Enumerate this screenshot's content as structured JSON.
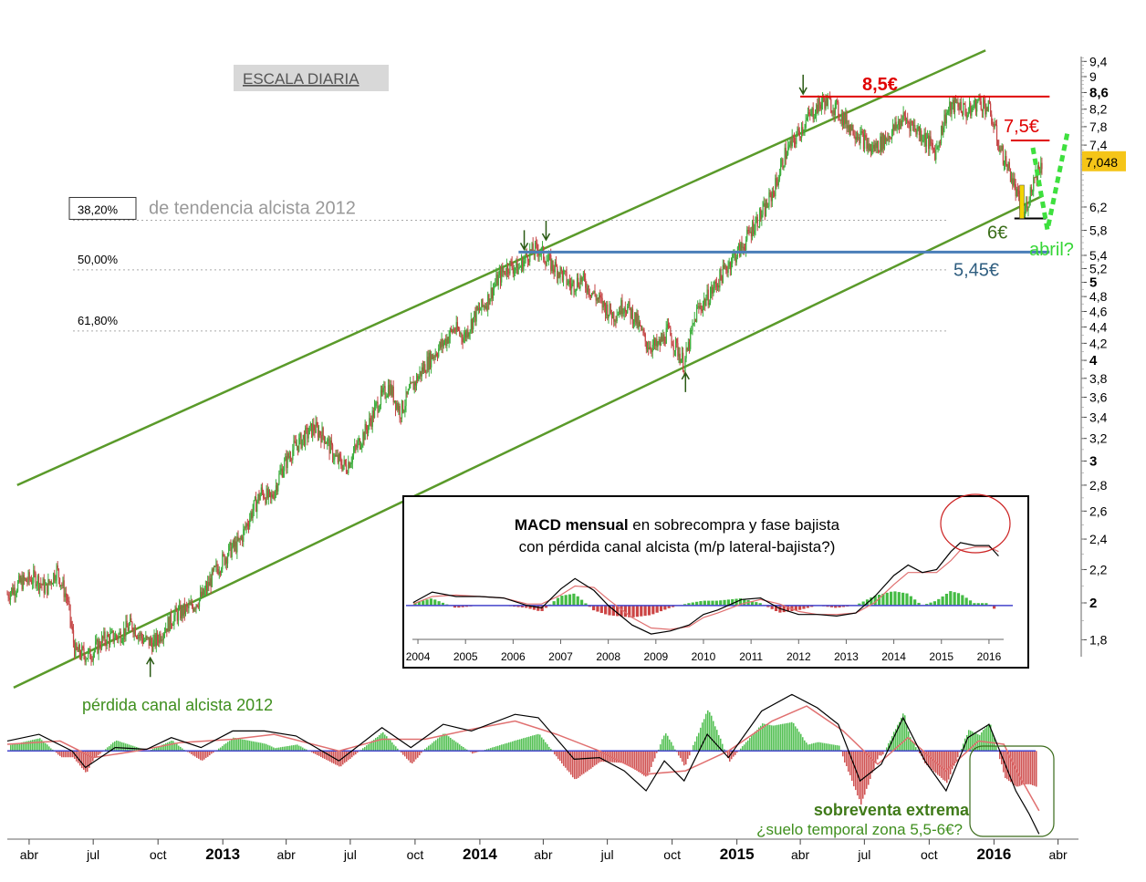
{
  "chart_data": {
    "type": "line",
    "scale_label": "ESCALA DIARIA",
    "current_price": "7,048",
    "y_scale": "log",
    "ylim": [
      1.65,
      9.6
    ],
    "y_ticks": [
      {
        "v": 9.4,
        "label": "9,4",
        "bold": false
      },
      {
        "v": 9.0,
        "label": "9",
        "bold": false
      },
      {
        "v": 8.6,
        "label": "8,6",
        "bold": true
      },
      {
        "v": 8.2,
        "label": "8,2",
        "bold": false
      },
      {
        "v": 7.8,
        "label": "7,8",
        "bold": false
      },
      {
        "v": 7.4,
        "label": "7,4",
        "bold": false
      },
      {
        "v": 6.2,
        "label": "6,2",
        "bold": false
      },
      {
        "v": 5.8,
        "label": "5,8",
        "bold": false
      },
      {
        "v": 5.4,
        "label": "5,4",
        "bold": false
      },
      {
        "v": 5.2,
        "label": "5,2",
        "bold": false
      },
      {
        "v": 5.0,
        "label": "5",
        "bold": true
      },
      {
        "v": 4.8,
        "label": "4,8",
        "bold": false
      },
      {
        "v": 4.6,
        "label": "4,6",
        "bold": false
      },
      {
        "v": 4.4,
        "label": "4,4",
        "bold": false
      },
      {
        "v": 4.2,
        "label": "4,2",
        "bold": false
      },
      {
        "v": 4.0,
        "label": "4",
        "bold": true
      },
      {
        "v": 3.8,
        "label": "3,8",
        "bold": false
      },
      {
        "v": 3.6,
        "label": "3,6",
        "bold": false
      },
      {
        "v": 3.4,
        "label": "3,4",
        "bold": false
      },
      {
        "v": 3.2,
        "label": "3,2",
        "bold": false
      },
      {
        "v": 3.0,
        "label": "3",
        "bold": true
      },
      {
        "v": 2.8,
        "label": "2,8",
        "bold": false
      },
      {
        "v": 2.6,
        "label": "2,6",
        "bold": false
      },
      {
        "v": 2.4,
        "label": "2,4",
        "bold": false
      },
      {
        "v": 2.2,
        "label": "2,2",
        "bold": false
      },
      {
        "v": 2.0,
        "label": "2",
        "bold": true
      },
      {
        "v": 1.8,
        "label": "1,8",
        "bold": false
      }
    ],
    "x_range": [
      "2012-03-01",
      "2016-04-30"
    ],
    "x_ticks": [
      {
        "date": "2012-04-01",
        "label": "abr",
        "bold": false
      },
      {
        "date": "2012-07-01",
        "label": "jul",
        "bold": false
      },
      {
        "date": "2012-10-01",
        "label": "oct",
        "bold": false
      },
      {
        "date": "2013-01-01",
        "label": "2013",
        "bold": true
      },
      {
        "date": "2013-04-01",
        "label": "abr",
        "bold": false
      },
      {
        "date": "2013-07-01",
        "label": "jul",
        "bold": false
      },
      {
        "date": "2013-10-01",
        "label": "oct",
        "bold": false
      },
      {
        "date": "2014-01-01",
        "label": "2014",
        "bold": true
      },
      {
        "date": "2014-04-01",
        "label": "abr",
        "bold": false
      },
      {
        "date": "2014-07-01",
        "label": "jul",
        "bold": false
      },
      {
        "date": "2014-10-01",
        "label": "oct",
        "bold": false
      },
      {
        "date": "2015-01-01",
        "label": "2015",
        "bold": true
      },
      {
        "date": "2015-04-01",
        "label": "abr",
        "bold": false
      },
      {
        "date": "2015-07-01",
        "label": "jul",
        "bold": false
      },
      {
        "date": "2015-10-01",
        "label": "oct",
        "bold": false
      },
      {
        "date": "2016-01-01",
        "label": "2016",
        "bold": true
      },
      {
        "date": "2016-04-01",
        "label": "abr",
        "bold": false
      }
    ],
    "price_path": [
      [
        "2012-03-01",
        2.05
      ],
      [
        "2012-03-20",
        2.12
      ],
      [
        "2012-04-10",
        2.15
      ],
      [
        "2012-04-25",
        2.08
      ],
      [
        "2012-05-10",
        2.2
      ],
      [
        "2012-05-25",
        2.02
      ],
      [
        "2012-06-05",
        1.74
      ],
      [
        "2012-06-25",
        1.72
      ],
      [
        "2012-07-15",
        1.8
      ],
      [
        "2012-08-05",
        1.82
      ],
      [
        "2012-08-25",
        1.88
      ],
      [
        "2012-09-10",
        1.8
      ],
      [
        "2012-09-25",
        1.78
      ],
      [
        "2012-10-10",
        1.86
      ],
      [
        "2012-10-25",
        1.93
      ],
      [
        "2012-11-15",
        1.97
      ],
      [
        "2012-12-05",
        2.05
      ],
      [
        "2012-12-20",
        2.18
      ],
      [
        "2013-01-10",
        2.32
      ],
      [
        "2013-01-25",
        2.38
      ],
      [
        "2013-02-10",
        2.58
      ],
      [
        "2013-02-25",
        2.75
      ],
      [
        "2013-03-10",
        2.68
      ],
      [
        "2013-03-25",
        2.92
      ],
      [
        "2013-04-10",
        3.1
      ],
      [
        "2013-04-25",
        3.2
      ],
      [
        "2013-05-10",
        3.3
      ],
      [
        "2013-05-25",
        3.22
      ],
      [
        "2013-06-10",
        3.02
      ],
      [
        "2013-06-25",
        2.95
      ],
      [
        "2013-07-10",
        3.12
      ],
      [
        "2013-07-25",
        3.3
      ],
      [
        "2013-08-10",
        3.55
      ],
      [
        "2013-08-25",
        3.72
      ],
      [
        "2013-09-10",
        3.45
      ],
      [
        "2013-09-25",
        3.68
      ],
      [
        "2013-10-10",
        3.88
      ],
      [
        "2013-10-25",
        4.05
      ],
      [
        "2013-11-10",
        4.2
      ],
      [
        "2013-11-25",
        4.38
      ],
      [
        "2013-12-10",
        4.28
      ],
      [
        "2013-12-25",
        4.55
      ],
      [
        "2014-01-10",
        4.72
      ],
      [
        "2014-01-25",
        5.02
      ],
      [
        "2014-02-10",
        5.25
      ],
      [
        "2014-02-25",
        5.2
      ],
      [
        "2014-03-10",
        5.42
      ],
      [
        "2014-03-25",
        5.5
      ],
      [
        "2014-04-10",
        5.28
      ],
      [
        "2014-04-25",
        5.15
      ],
      [
        "2014-05-10",
        4.95
      ],
      [
        "2014-05-25",
        5.05
      ],
      [
        "2014-06-10",
        4.85
      ],
      [
        "2014-06-25",
        4.68
      ],
      [
        "2014-07-10",
        4.55
      ],
      [
        "2014-07-25",
        4.7
      ],
      [
        "2014-08-10",
        4.5
      ],
      [
        "2014-08-25",
        4.2
      ],
      [
        "2014-09-10",
        4.15
      ],
      [
        "2014-09-25",
        4.35
      ],
      [
        "2014-10-10",
        4.1
      ],
      [
        "2014-10-18",
        3.95
      ],
      [
        "2014-11-05",
        4.6
      ],
      [
        "2014-11-25",
        4.85
      ],
      [
        "2014-12-10",
        5.1
      ],
      [
        "2014-12-25",
        5.35
      ],
      [
        "2015-01-10",
        5.55
      ],
      [
        "2015-01-25",
        5.9
      ],
      [
        "2015-02-10",
        6.15
      ],
      [
        "2015-02-25",
        6.6
      ],
      [
        "2015-03-10",
        7.2
      ],
      [
        "2015-03-25",
        7.55
      ],
      [
        "2015-04-10",
        7.95
      ],
      [
        "2015-04-25",
        8.25
      ],
      [
        "2015-05-05",
        8.4
      ],
      [
        "2015-05-20",
        8.25
      ],
      [
        "2015-06-05",
        7.9
      ],
      [
        "2015-06-25",
        7.6
      ],
      [
        "2015-07-10",
        7.3
      ],
      [
        "2015-07-25",
        7.45
      ],
      [
        "2015-08-10",
        7.7
      ],
      [
        "2015-08-25",
        8.0
      ],
      [
        "2015-09-10",
        7.8
      ],
      [
        "2015-09-25",
        7.55
      ],
      [
        "2015-10-10",
        7.25
      ],
      [
        "2015-10-25",
        8.1
      ],
      [
        "2015-11-10",
        8.35
      ],
      [
        "2015-11-25",
        8.1
      ],
      [
        "2015-12-10",
        8.4
      ],
      [
        "2015-12-25",
        8.2
      ],
      [
        "2016-01-10",
        7.3
      ],
      [
        "2016-01-25",
        6.8
      ],
      [
        "2016-02-05",
        6.3
      ],
      [
        "2016-02-11",
        6.0
      ],
      [
        "2016-02-20",
        6.4
      ],
      [
        "2016-02-28",
        6.8
      ],
      [
        "2016-03-10",
        7.05
      ]
    ],
    "channel_upper": [
      [
        "2012-03-15",
        2.8
      ],
      [
        "2015-12-20",
        9.7
      ]
    ],
    "channel_lower": [
      [
        "2012-03-10",
        1.57
      ],
      [
        "2016-03-10",
        6.4
      ]
    ],
    "horizontal_levels": [
      {
        "value": 8.5,
        "label": "8,5€",
        "color": "#e00000",
        "from": "2015-04-01",
        "to": "2016-03-20"
      },
      {
        "value": 7.5,
        "label": "7,5€",
        "color": "#e00000",
        "from": "2016-01-25",
        "to": "2016-03-20"
      },
      {
        "value": 6.0,
        "label": "6€",
        "color": "#000000",
        "from": "2016-01-30",
        "to": "2016-03-15"
      },
      {
        "value": 5.45,
        "label": "5,45€",
        "color": "#4a7eb8",
        "from": "2014-02-25",
        "to": "2016-03-20"
      }
    ],
    "fib_levels": [
      {
        "label": "38,20%",
        "value": 5.97,
        "note": "de tendencia alcista 2012"
      },
      {
        "label": "50,00%",
        "value": 5.18
      },
      {
        "label": "61,80%",
        "value": 4.35
      }
    ],
    "arrows_down": [
      [
        "2014-03-05",
        5.45
      ],
      [
        "2014-04-05",
        5.6
      ],
      [
        "2015-04-05",
        8.5
      ]
    ],
    "arrows_up": [
      [
        "2012-09-20",
        1.75
      ],
      [
        "2014-10-20",
        3.95
      ]
    ],
    "annotations": {
      "channel_lost": "pérdida canal alcista 2012",
      "projection": "abril?",
      "oversold_title": "sobreventa extrema",
      "oversold_sub": "¿suelo temporal zona 5,5-6€?"
    },
    "macd_inset": {
      "title_bold": "MACD mensual",
      "title_rest": " en sobrecompra y fase bajista",
      "subtitle": "con pérdida canal alcista (m/p lateral-bajista?)",
      "years": [
        "2004",
        "2005",
        "2006",
        "2007",
        "2008",
        "2009",
        "2010",
        "2011",
        "2012",
        "2013",
        "2014",
        "2015",
        "2016"
      ],
      "macd_line": [
        [
          2003.9,
          0.1
        ],
        [
          2004.3,
          0.45
        ],
        [
          2004.8,
          0.3
        ],
        [
          2005.3,
          0.3
        ],
        [
          2005.8,
          0.25
        ],
        [
          2006.3,
          0.0
        ],
        [
          2006.6,
          -0.08
        ],
        [
          2007.0,
          0.55
        ],
        [
          2007.3,
          0.9
        ],
        [
          2007.7,
          0.5
        ],
        [
          2008.0,
          0.0
        ],
        [
          2008.5,
          -0.65
        ],
        [
          2008.9,
          -0.95
        ],
        [
          2009.3,
          -0.85
        ],
        [
          2009.7,
          -0.65
        ],
        [
          2010.0,
          -0.3
        ],
        [
          2010.3,
          -0.15
        ],
        [
          2010.8,
          0.2
        ],
        [
          2011.2,
          0.25
        ],
        [
          2011.6,
          -0.1
        ],
        [
          2012.0,
          -0.3
        ],
        [
          2012.4,
          -0.3
        ],
        [
          2012.8,
          -0.35
        ],
        [
          2013.2,
          -0.25
        ],
        [
          2013.6,
          0.3
        ],
        [
          2014.0,
          1.0
        ],
        [
          2014.3,
          1.35
        ],
        [
          2014.6,
          1.1
        ],
        [
          2014.9,
          1.2
        ],
        [
          2015.2,
          1.8
        ],
        [
          2015.4,
          2.1
        ],
        [
          2015.7,
          2.0
        ],
        [
          2016.0,
          2.0
        ],
        [
          2016.2,
          1.65
        ]
      ],
      "signal_line": [
        [
          2003.9,
          0.05
        ],
        [
          2004.3,
          0.3
        ],
        [
          2004.8,
          0.35
        ],
        [
          2005.3,
          0.3
        ],
        [
          2005.8,
          0.25
        ],
        [
          2006.3,
          0.05
        ],
        [
          2006.6,
          0.05
        ],
        [
          2007.0,
          0.35
        ],
        [
          2007.3,
          0.65
        ],
        [
          2007.7,
          0.6
        ],
        [
          2008.0,
          0.2
        ],
        [
          2008.5,
          -0.4
        ],
        [
          2008.9,
          -0.75
        ],
        [
          2009.3,
          -0.8
        ],
        [
          2009.7,
          -0.7
        ],
        [
          2010.0,
          -0.4
        ],
        [
          2010.3,
          -0.25
        ],
        [
          2010.8,
          0.05
        ],
        [
          2011.2,
          0.2
        ],
        [
          2011.6,
          0.05
        ],
        [
          2012.0,
          -0.2
        ],
        [
          2012.4,
          -0.3
        ],
        [
          2012.8,
          -0.3
        ],
        [
          2013.2,
          -0.25
        ],
        [
          2013.6,
          0.1
        ],
        [
          2014.0,
          0.7
        ],
        [
          2014.3,
          1.1
        ],
        [
          2014.6,
          1.1
        ],
        [
          2014.9,
          1.1
        ],
        [
          2015.2,
          1.5
        ],
        [
          2015.4,
          1.85
        ],
        [
          2015.7,
          1.95
        ],
        [
          2016.0,
          1.95
        ],
        [
          2016.2,
          1.8
        ]
      ],
      "y_range": [
        -1.1,
        2.4
      ]
    },
    "lower_macd": {
      "baseline": 0,
      "y_range": [
        -2.6,
        1.6
      ],
      "line": [
        [
          "2012-03-01",
          0.3
        ],
        [
          "2012-04-15",
          0.5
        ],
        [
          "2012-06-01",
          0.0
        ],
        [
          "2012-06-20",
          -0.5
        ],
        [
          "2012-08-01",
          0.1
        ],
        [
          "2012-09-15",
          0.05
        ],
        [
          "2012-10-20",
          0.4
        ],
        [
          "2012-12-01",
          0.1
        ],
        [
          "2013-01-15",
          0.6
        ],
        [
          "2013-03-01",
          0.6
        ],
        [
          "2013-04-15",
          0.45
        ],
        [
          "2013-06-15",
          -0.3
        ],
        [
          "2013-08-15",
          0.7
        ],
        [
          "2013-09-25",
          0.1
        ],
        [
          "2013-11-10",
          0.8
        ],
        [
          "2013-12-20",
          0.6
        ],
        [
          "2014-02-20",
          1.1
        ],
        [
          "2014-03-25",
          1.0
        ],
        [
          "2014-05-15",
          -0.25
        ],
        [
          "2014-06-20",
          -0.2
        ],
        [
          "2014-07-25",
          -0.6
        ],
        [
          "2014-08-25",
          -1.2
        ],
        [
          "2014-09-20",
          -0.3
        ],
        [
          "2014-10-18",
          -0.9
        ],
        [
          "2014-11-20",
          0.5
        ],
        [
          "2014-12-20",
          -0.2
        ],
        [
          "2015-02-05",
          1.2
        ],
        [
          "2015-03-20",
          1.7
        ],
        [
          "2015-04-25",
          1.3
        ],
        [
          "2015-05-25",
          0.8
        ],
        [
          "2015-06-25",
          -0.9
        ],
        [
          "2015-07-25",
          -0.4
        ],
        [
          "2015-08-25",
          1.0
        ],
        [
          "2015-09-25",
          -0.3
        ],
        [
          "2015-10-25",
          -1.2
        ],
        [
          "2015-11-25",
          0.4
        ],
        [
          "2015-12-25",
          0.8
        ],
        [
          "2016-01-15",
          -0.3
        ],
        [
          "2016-02-01",
          -1.2
        ],
        [
          "2016-02-20",
          -1.9
        ],
        [
          "2016-03-05",
          -2.5
        ]
      ],
      "signal": [
        [
          "2012-03-01",
          0.2
        ],
        [
          "2012-05-15",
          0.3
        ],
        [
          "2012-07-01",
          -0.2
        ],
        [
          "2012-09-01",
          0.0
        ],
        [
          "2012-11-01",
          0.25
        ],
        [
          "2013-01-15",
          0.35
        ],
        [
          "2013-03-15",
          0.5
        ],
        [
          "2013-06-15",
          0.0
        ],
        [
          "2013-08-15",
          0.35
        ],
        [
          "2013-10-15",
          0.35
        ],
        [
          "2013-12-20",
          0.65
        ],
        [
          "2014-02-20",
          0.9
        ],
        [
          "2014-04-20",
          0.5
        ],
        [
          "2014-06-20",
          0.0
        ],
        [
          "2014-08-25",
          -0.7
        ],
        [
          "2014-10-20",
          -0.6
        ],
        [
          "2014-12-20",
          0.0
        ],
        [
          "2015-02-20",
          0.9
        ],
        [
          "2015-04-10",
          1.35
        ],
        [
          "2015-06-01",
          0.6
        ],
        [
          "2015-07-20",
          -0.4
        ],
        [
          "2015-09-01",
          0.4
        ],
        [
          "2015-10-25",
          -0.6
        ],
        [
          "2015-12-10",
          0.3
        ],
        [
          "2016-01-15",
          0.2
        ],
        [
          "2016-02-10",
          -0.9
        ],
        [
          "2016-03-05",
          -1.8
        ]
      ]
    },
    "colors": {
      "channel": "#5a9a2a",
      "up_candle": "#3cae3c",
      "down_candle": "#c44444",
      "resistance": "#e00000",
      "support": "#4a7eb8",
      "macd_line": "#000000",
      "macd_signal": "#e07070",
      "hist_pos": "#44bb44",
      "hist_neg": "#cc4444",
      "baseline": "#4444cc",
      "price_badge": "#f5c518"
    }
  }
}
